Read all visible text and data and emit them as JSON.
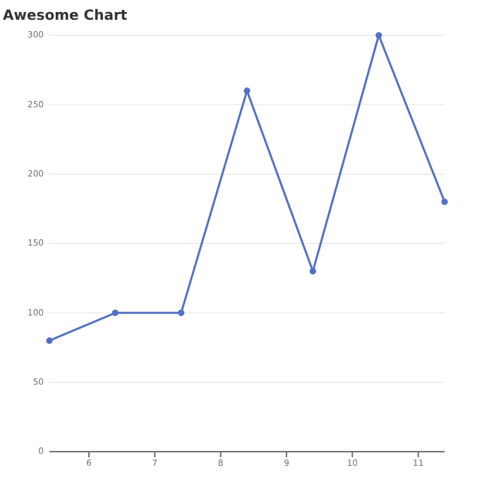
{
  "chart_data": {
    "type": "line",
    "title": "Awesome Chart",
    "x": [
      5.4,
      6.4,
      7.4,
      8.4,
      9.4,
      10.4,
      11.4
    ],
    "series": [
      {
        "color": "#5470c6",
        "values": [
          80,
          100,
          100,
          260,
          130,
          300,
          180
        ]
      }
    ],
    "xlim": [
      5.4,
      11.4
    ],
    "xticks": [
      6,
      7,
      8,
      9,
      10,
      11
    ],
    "ylim": [
      0,
      300
    ],
    "yticks": [
      0,
      50,
      100,
      150,
      200,
      250,
      300
    ],
    "grid": "y",
    "marker": "circle"
  }
}
